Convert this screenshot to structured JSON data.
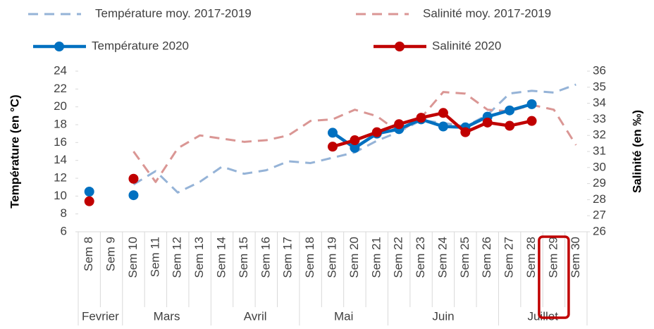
{
  "chart_data": {
    "type": "line",
    "y_label": "Température  (en °C)",
    "y2_label": "Salinité (en ‰)",
    "categories": [
      "Sem 8",
      "Sem 9",
      "Sem 10",
      "Sem 11",
      "Sem 12",
      "Sem 13",
      "Sem 14",
      "Sem 15",
      "Sem 16",
      "Sem 17",
      "Sem 18",
      "Sem 19",
      "Sem 20",
      "Sem 21",
      "Sem 22",
      "Sem 23",
      "Sem 24",
      "Sem 25",
      "Sem 26",
      "Sem 27",
      "Sem 28",
      "Sem 29",
      "Sem 30"
    ],
    "groups": [
      {
        "label": "Fevrier",
        "span": 2
      },
      {
        "label": "Mars",
        "span": 4
      },
      {
        "label": "Avril",
        "span": 4
      },
      {
        "label": "Mai",
        "span": 4
      },
      {
        "label": "Juin",
        "span": 5
      },
      {
        "label": "Juillet",
        "span": 4
      }
    ],
    "highlight_category": 21,
    "ylim": [
      6,
      24
    ],
    "yticks": [
      6,
      8,
      10,
      12,
      14,
      16,
      18,
      20,
      22,
      24
    ],
    "y2lim": [
      26,
      36
    ],
    "y2ticks": [
      26,
      27,
      28,
      29,
      30,
      31,
      32,
      33,
      34,
      35,
      36
    ],
    "series": [
      {
        "name": "Température moy. 2017-2019",
        "color": "#95b3d7",
        "dashed": true,
        "axis": "y",
        "values": [
          null,
          null,
          11.3,
          12.8,
          10.4,
          11.6,
          13.3,
          12.5,
          12.9,
          13.9,
          13.7,
          14.3,
          14.9,
          16.2,
          17.2,
          18.5,
          18.2,
          17.8,
          19.1,
          21.5,
          21.8,
          21.6,
          22.5
        ]
      },
      {
        "name": "Salinité moy. 2017-2019",
        "color": "#da9694",
        "dashed": true,
        "axis": "y2",
        "values": [
          null,
          null,
          31.0,
          29.1,
          31.2,
          32.0,
          31.8,
          31.6,
          31.7,
          32.0,
          32.9,
          33.0,
          33.6,
          33.2,
          32.2,
          33.1,
          34.7,
          34.6,
          33.6,
          33.5,
          33.9,
          33.6,
          31.4
        ]
      },
      {
        "name": "Température 2020",
        "color": "#0070c0",
        "dashed": false,
        "axis": "y",
        "values": [
          10.5,
          null,
          10.1,
          null,
          null,
          null,
          null,
          null,
          null,
          null,
          null,
          17.1,
          15.4,
          17.0,
          17.5,
          18.6,
          17.8,
          17.7,
          18.9,
          19.6,
          20.3,
          null,
          null
        ]
      },
      {
        "name": "Salinité 2020",
        "color": "#c00000",
        "dashed": false,
        "axis": "y2",
        "values": [
          27.9,
          null,
          29.3,
          null,
          null,
          null,
          null,
          null,
          null,
          null,
          null,
          31.3,
          31.7,
          32.2,
          32.7,
          33.1,
          33.4,
          32.2,
          32.8,
          32.6,
          32.9,
          null,
          null
        ]
      }
    ]
  }
}
